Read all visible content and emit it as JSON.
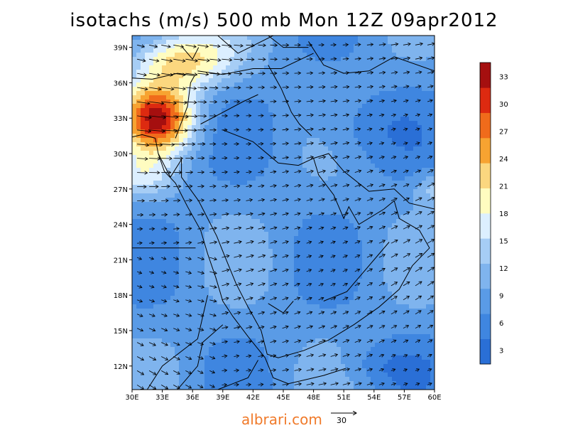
{
  "title": "isotachs (m/s) 500 mb Mon 12Z 09apr2012",
  "map": {
    "lon_range": [
      30,
      60
    ],
    "lat_range": [
      10,
      40
    ],
    "lon_ticks": [
      "30E",
      "33E",
      "36E",
      "39E",
      "42E",
      "45E",
      "48E",
      "51E",
      "54E",
      "57E",
      "60E"
    ],
    "lat_ticks": [
      "39N",
      "36N",
      "33N",
      "30N",
      "27N",
      "24N",
      "21N",
      "18N",
      "15N",
      "12N"
    ],
    "lat_tick_values": [
      39,
      36,
      33,
      30,
      27,
      24,
      21,
      18,
      15,
      12
    ],
    "lon_tick_values": [
      30,
      33,
      36,
      39,
      42,
      45,
      48,
      51,
      54,
      57,
      60
    ]
  },
  "colorbar": {
    "labels": [
      "33",
      "30",
      "27",
      "24",
      "21",
      "18",
      "15",
      "12",
      "9",
      "6",
      "3"
    ],
    "label_values": [
      33,
      30,
      27,
      24,
      21,
      18,
      15,
      12,
      9,
      6,
      3
    ],
    "levels": [
      1.5,
      4.5,
      7.5,
      10.5,
      13.5,
      16.5,
      19.5,
      22.5,
      25.5,
      28.5,
      31.5,
      34.5
    ],
    "colors": [
      "#2a6fd6",
      "#3f86e0",
      "#5a9be6",
      "#7fb4ee",
      "#a6cdf5",
      "#dcefff",
      "#fffcc0",
      "#fbd77f",
      "#f7a331",
      "#f06b1b",
      "#dd2a10",
      "#a50f0f"
    ]
  },
  "reference_vector": {
    "label": "30"
  },
  "watermark": "albrari.com",
  "colors": {
    "coastline": "#000000"
  }
}
